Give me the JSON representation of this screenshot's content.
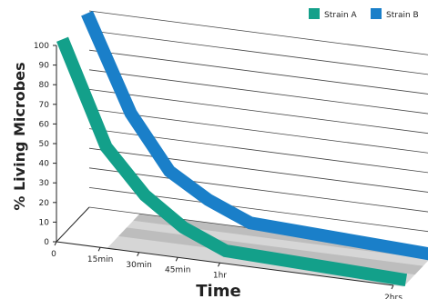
{
  "chart_data": {
    "type": "line",
    "style": "3d-perspective",
    "xlabel": "Time",
    "ylabel": "% Living Microbes",
    "x_ticks": [
      "0",
      "15min",
      "30min",
      "45min",
      "1hr",
      "2hrs"
    ],
    "y_ticks": [
      "0",
      "10",
      "20",
      "30",
      "40",
      "50",
      "60",
      "70",
      "80",
      "90",
      "100"
    ],
    "ylim": [
      0,
      100
    ],
    "grid": true,
    "legend_position": "top-right",
    "series": [
      {
        "name": "Strain A",
        "color": "#13a08a",
        "x": [
          "0",
          "15min",
          "30min",
          "45min",
          "1hr",
          "2hrs"
        ],
        "values": [
          100,
          48,
          26,
          12,
          3,
          0
        ]
      },
      {
        "name": "Strain B",
        "color": "#1a7fc9",
        "x": [
          "0",
          "15min",
          "30min",
          "45min",
          "1hr",
          "2hrs"
        ],
        "values": [
          100,
          52,
          25,
          13,
          4,
          0
        ]
      }
    ]
  }
}
